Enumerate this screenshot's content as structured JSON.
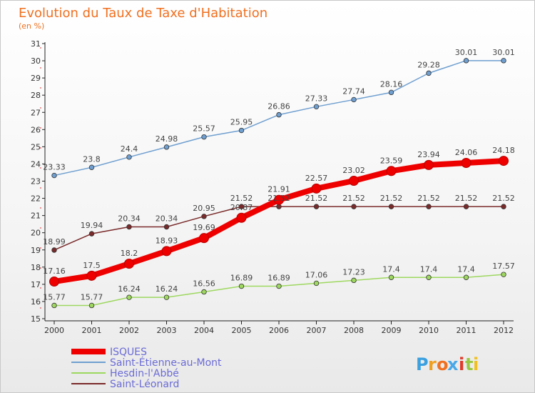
{
  "chart_data": {
    "type": "line",
    "title": "Evolution du Taux de Taxe d'Habitation",
    "subtitle": "(en %)",
    "x": [
      2000,
      2001,
      2002,
      2003,
      2004,
      2005,
      2006,
      2007,
      2008,
      2009,
      2010,
      2011,
      2012
    ],
    "ylim": [
      15,
      31
    ],
    "yticks": [
      15,
      16,
      17,
      18,
      19,
      20,
      21,
      22,
      23,
      24,
      25,
      26,
      27,
      28,
      29,
      30,
      31
    ],
    "grid": false,
    "legend_position": "bottom-left",
    "series": [
      {
        "name": "ISQUES",
        "color": "#ee0000",
        "values": [
          17.16,
          17.5,
          18.2,
          18.93,
          19.69,
          20.87,
          21.91,
          22.57,
          23.02,
          23.59,
          23.94,
          24.06,
          24.18
        ]
      },
      {
        "name": "Saint-Étienne-au-Mont",
        "color": "#6f9fd0",
        "values": [
          23.33,
          23.8,
          24.4,
          24.98,
          25.57,
          25.95,
          26.86,
          27.33,
          27.74,
          28.16,
          29.28,
          30.01,
          30.01
        ]
      },
      {
        "name": "Hesdin-l'Abbé",
        "color": "#9ed860",
        "values": [
          15.77,
          15.77,
          16.24,
          16.24,
          16.56,
          16.89,
          16.89,
          17.06,
          17.23,
          17.4,
          17.4,
          17.4,
          17.57
        ]
      },
      {
        "name": "Saint-Léonard",
        "color": "#7a2a2a",
        "values": [
          18.99,
          19.94,
          20.34,
          20.34,
          20.95,
          21.52,
          21.52,
          21.52,
          21.52,
          21.52,
          21.52,
          21.52,
          21.52
        ]
      }
    ]
  },
  "logo": {
    "letters": [
      "P",
      "r",
      "o",
      "x",
      "i",
      "t",
      "i"
    ],
    "colors": [
      "#3aa0e0",
      "#f0a020",
      "#f07020",
      "#4aa8e8",
      "#e03a2a",
      "#9ac840",
      "#f0c020"
    ]
  }
}
